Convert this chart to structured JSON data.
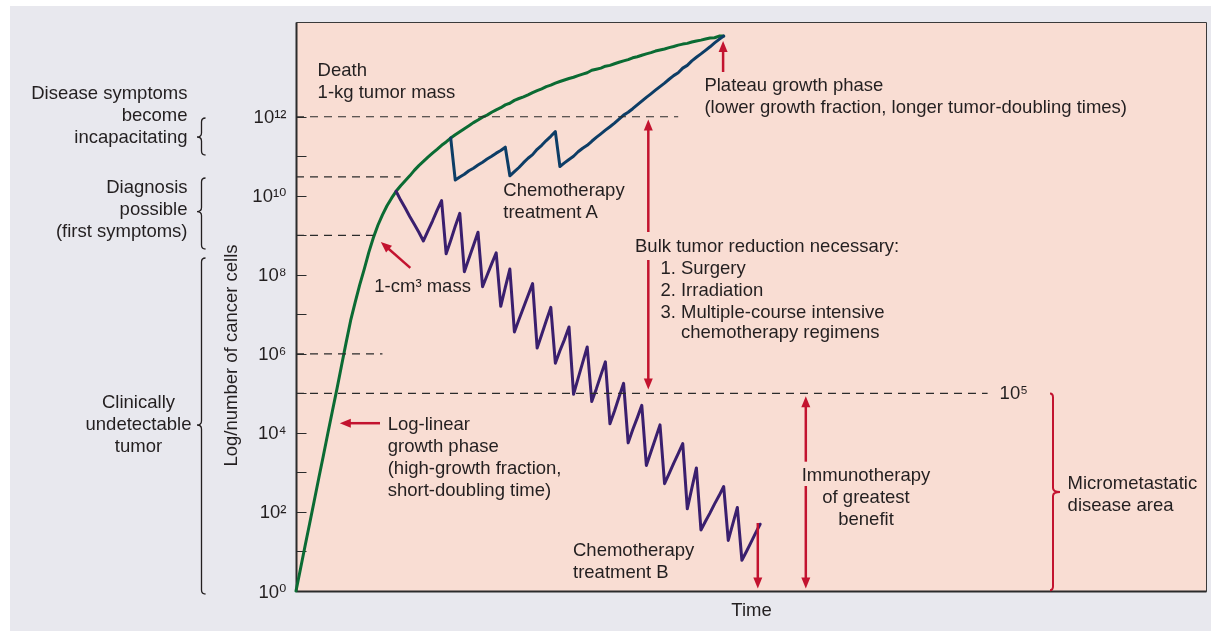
{
  "chart_data": {
    "type": "line",
    "xlabel": "Time",
    "ylabel": "Log/number of cancer cells",
    "categories": [
      null,
      null,
      null,
      null,
      null,
      null,
      null,
      null,
      null,
      null,
      null,
      null,
      null,
      null,
      null,
      null,
      null,
      null,
      null,
      null,
      null,
      null,
      null,
      null,
      null,
      null,
      null,
      null,
      null,
      null,
      null,
      null,
      null,
      null,
      null,
      null,
      null,
      null,
      null,
      null,
      null,
      null,
      null,
      null,
      null,
      null,
      null,
      null,
      null,
      null,
      null,
      null,
      null,
      null,
      null,
      null,
      null,
      null,
      null,
      null,
      null,
      null,
      null,
      null,
      null,
      null,
      null,
      null,
      null,
      null,
      null,
      null,
      null,
      null,
      null,
      null,
      null,
      null,
      null,
      null,
      null,
      null,
      null,
      null,
      null,
      null,
      null,
      null,
      null,
      null,
      null,
      null,
      null,
      null,
      null,
      null,
      null,
      null,
      null,
      null,
      null,
      null,
      null,
      null,
      null,
      null,
      null,
      null,
      null,
      null,
      null,
      null,
      null,
      null,
      null,
      null,
      null,
      null,
      null,
      null,
      null,
      null,
      null,
      null,
      null,
      null,
      null,
      null,
      null,
      null,
      null,
      null,
      null,
      null,
      null,
      null,
      null,
      null,
      null,
      null,
      null,
      null,
      null,
      null,
      null,
      null,
      null,
      null,
      null,
      null,
      null,
      null,
      null,
      null,
      null,
      null,
      null,
      null,
      null,
      null,
      null,
      null,
      null,
      null,
      null,
      null,
      null,
      null,
      null,
      null,
      null,
      null,
      null,
      null,
      null,
      null,
      null,
      null,
      null,
      null,
      null,
      null,
      null,
      null,
      null,
      null,
      null,
      null,
      null,
      null,
      null,
      null,
      null,
      null,
      null,
      null,
      null,
      null,
      null,
      null,
      null
    ],
    "ylim": [
      1,
      250000000000000.0
    ],
    "log": true,
    "grid": false,
    "legend": false,
    "tick_labels": "y",
    "yticks": [
      {
        "value": 1,
        "label": "10⁰"
      },
      {
        "value": 10,
        "label": null
      },
      {
        "value": 100,
        "label": "10²"
      },
      {
        "value": 1000,
        "label": null
      },
      {
        "value": 10000,
        "label": "10⁴"
      },
      {
        "value": 100000,
        "label": null
      },
      {
        "value": 1000000,
        "label": "10⁶"
      },
      {
        "value": 10000000,
        "label": null
      },
      {
        "value": 100000000,
        "label": "10⁸"
      },
      {
        "value": 1000000000,
        "label": null
      },
      {
        "value": 10000000000,
        "label": "10¹⁰"
      },
      {
        "value": 100000000000,
        "label": null
      },
      {
        "value": 1000000000000,
        "label": "10¹²"
      }
    ],
    "series": [
      {
        "color": "#0b6b33",
        "values": [
          1,
          3.7,
          14,
          51,
          190,
          710,
          2600,
          9800,
          36000.0,
          130000.0,
          500000.0,
          1900000.0,
          6900000.0,
          20000000.0,
          56000000.0,
          140000000.0,
          370000000.0,
          870000000.0,
          1800000000.0,
          3300000000.0,
          5600000000.0,
          8700000000.0,
          13000000000.0,
          18000000000.0,
          24000000000.0,
          32000000000.0,
          44000000000.0,
          58000000000.0,
          74000000000.0,
          95000000000.0,
          120000000000.0,
          150000000000.0,
          190000000000.0,
          230000000000.0,
          290000000000.0,
          350000000000.0,
          420000000000.0,
          500000000000.0,
          590000000000.0,
          710000000000.0,
          830000000000.0,
          980000000000.0,
          1100000000000.0,
          1300000000000.0,
          1500000000000.0,
          1700000000000.0,
          2000000000000.0,
          2200000000000.0,
          2600000000000.0,
          2900000000000.0,
          3200000000000.0,
          3600000000000.0,
          4100000000000.0,
          4600000000000.0,
          5100000000000.0,
          5800000000000.0,
          6300000000000.0,
          7100000000000.0,
          7800000000000.0,
          8500000000000.0,
          9300000000000.0,
          10000000000000.0,
          11000000000000.0,
          12000000000000.0,
          13000000000000.0,
          15000000000000.0,
          16000000000000.0,
          17000000000000.0,
          19000000000000.0,
          20000000000000.0,
          22000000000000.0,
          24000000000000.0,
          26000000000000.0,
          28000000000000.0,
          31000000000000.0,
          33000000000000.0,
          36000000000000.0,
          39000000000000.0,
          42000000000000.0,
          46000000000000.0,
          49000000000000.0,
          52000000000000.0,
          56000000000000.0,
          60000000000000.0,
          65000000000000.0,
          69000000000000.0,
          72000000000000.0,
          78000000000000.0,
          83000000000000.0,
          87000000000000.0,
          93000000000000.0,
          98000000000000.0,
          100000000000000.0,
          110000000000000.0,
          110000000000000.0,
          null,
          null,
          null,
          null,
          null,
          null,
          null,
          null,
          null,
          null,
          null,
          null,
          null,
          null,
          null,
          null,
          null,
          null,
          null,
          null,
          null,
          null,
          null,
          null,
          null,
          null,
          null,
          null,
          null,
          null,
          null,
          null,
          null,
          null,
          null,
          null,
          null,
          null,
          null,
          null,
          null,
          null,
          null,
          null,
          null,
          null,
          null,
          null,
          null,
          null,
          null,
          null,
          null,
          null,
          null,
          null,
          null,
          null,
          null,
          null,
          null,
          null,
          null,
          null,
          null,
          null,
          null,
          null,
          null,
          null,
          null,
          null,
          null,
          null,
          null,
          null,
          null,
          null,
          null,
          null,
          null,
          null,
          null,
          null,
          null,
          null,
          null,
          null,
          null,
          null,
          null,
          null,
          null,
          null,
          null,
          null,
          null,
          null,
          null,
          null,
          null,
          null,
          null,
          null,
          null,
          null
        ]
      },
      {
        "name": "Chemotherapy\ntreatment A",
        "color": "#0d3d66",
        "values": [
          null,
          null,
          null,
          null,
          null,
          null,
          null,
          null,
          null,
          null,
          null,
          null,
          null,
          null,
          null,
          null,
          null,
          null,
          null,
          null,
          null,
          null,
          null,
          null,
          null,
          null,
          null,
          null,
          null,
          null,
          null,
          null,
          null,
          null,
          290000000000.0,
          25000000000.0,
          30000000000.0,
          35000000000.0,
          43000000000.0,
          50000000000.0,
          60000000000.0,
          71000000000.0,
          85000000000.0,
          100000000000.0,
          120000000000.0,
          140000000000.0,
          170000000000.0,
          32000000000.0,
          41000000000.0,
          52000000000.0,
          69000000000.0,
          89000000000.0,
          110000000000.0,
          150000000000.0,
          190000000000.0,
          250000000000.0,
          320000000000.0,
          420000000000.0,
          55000000000.0,
          68000000000.0,
          83000000000.0,
          100000000000.0,
          130000000000.0,
          160000000000.0,
          190000000000.0,
          240000000000.0,
          300000000000.0,
          370000000000.0,
          460000000000.0,
          560000000000.0,
          690000000000.0,
          870000000000.0,
          1100000000000.0,
          1300000000000.0,
          1600000000000.0,
          2000000000000.0,
          2500000000000.0,
          3100000000000.0,
          3800000000000.0,
          4700000000000.0,
          5800000000000.0,
          7100000000000.0,
          8900000000000.0,
          11000000000000.0,
          13000000000000.0,
          17000000000000.0,
          20000000000000.0,
          26000000000000.0,
          32000000000000.0,
          39000000000000.0,
          48000000000000.0,
          59000000000000.0,
          74000000000000.0,
          91000000000000.0,
          110000000000000.0,
          null,
          null,
          null,
          null,
          null,
          null,
          null,
          null,
          null,
          null,
          null,
          null,
          null,
          null,
          null,
          null,
          null,
          null,
          null,
          null,
          null,
          null,
          null,
          null,
          null,
          null,
          null,
          null,
          null,
          null,
          null,
          null,
          null,
          null,
          null,
          null,
          null,
          null,
          null,
          null,
          null,
          null,
          null,
          null,
          null,
          null,
          null,
          null,
          null,
          null,
          null,
          null,
          null,
          null,
          null,
          null,
          null,
          null,
          null,
          null,
          null,
          null,
          null,
          null,
          null,
          null,
          null,
          null,
          null,
          null,
          null,
          null,
          null,
          null,
          null,
          null,
          null,
          null,
          null,
          null,
          null,
          null,
          null,
          null,
          null,
          null,
          null,
          null,
          null,
          null,
          null,
          null,
          null,
          null,
          null,
          null,
          null,
          null,
          null,
          null,
          null,
          null,
          null,
          null,
          null,
          null
        ]
      },
      {
        "name": "Chemotherapy\ntreatment B",
        "color": "#3a1f6e",
        "values": [
          null,
          null,
          null,
          null,
          null,
          null,
          null,
          null,
          null,
          null,
          null,
          null,
          null,
          null,
          null,
          null,
          null,
          null,
          null,
          null,
          null,
          null,
          13000000000.0,
          7800000000.0,
          4900000000.0,
          3000000000.0,
          1900000000.0,
          1200000000.0,
          720000000.0,
          1300000000.0,
          2300000000.0,
          4300000000.0,
          7600000000.0,
          340000000.0,
          740000000.0,
          1700000000.0,
          3600000000.0,
          120000000.0,
          260000000.0,
          550000000.0,
          1200000000.0,
          50000000.0,
          98000000.0,
          190000000.0,
          360000000.0,
          16000000.0,
          48000000.0,
          140000000.0,
          3600000.0,
          7400000.0,
          15000000.0,
          30000000.0,
          60000000.0,
          1400000.0,
          3100000.0,
          6900000.0,
          15000000.0,
          580000.0,
          1200000.0,
          2300000.0,
          4800000.0,
          95000.0,
          240000.0,
          600000.0,
          1500000.0,
          62000.0,
          130000.0,
          290000.0,
          630000.0,
          17000.0,
          36000.0,
          81000.0,
          180000.0,
          5600.0,
          12000.0,
          24000.0,
          50000.0,
          1500.0,
          3300.0,
          7200.0,
          16000.0,
          520,
          930,
          1700.0,
          3000.0,
          5400.0,
          120,
          400,
          1300.0,
          35,
          58,
          95,
          160,
          260,
          440,
          19,
          50,
          130,
          6,
          10,
          17,
          29,
          49,
          null,
          null,
          null,
          null,
          null,
          null,
          null,
          null,
          null,
          null,
          null,
          null,
          null,
          null,
          null,
          null,
          null,
          null,
          null,
          null,
          null,
          null,
          null,
          null,
          null,
          null,
          null,
          null,
          null,
          null,
          null,
          null,
          null,
          null,
          null,
          null,
          null,
          null,
          null,
          null,
          null,
          null,
          null,
          null,
          null,
          null,
          null,
          null,
          null,
          null,
          null,
          null,
          null,
          null,
          null,
          null,
          null,
          null,
          null,
          null,
          null,
          null,
          null,
          null,
          null,
          null,
          null,
          null,
          null,
          null,
          null,
          null,
          null,
          null,
          null,
          null,
          null,
          null,
          null,
          null,
          null,
          null,
          null,
          null,
          null,
          null,
          null,
          null,
          null,
          null,
          null,
          null,
          null,
          null,
          null,
          null,
          null,
          null
        ]
      },
      {
        "color": "#2b2b2b",
        "line_style": "dashed",
        "values": [
          1000000000000.0,
          1000000000000.0,
          1000000000000.0,
          1000000000000.0,
          1000000000000.0,
          1000000000000.0,
          1000000000000.0,
          1000000000000.0,
          1000000000000.0,
          1000000000000.0,
          1000000000000.0,
          1000000000000.0,
          1000000000000.0,
          1000000000000.0,
          1000000000000.0,
          1000000000000.0,
          1000000000000.0,
          1000000000000.0,
          1000000000000.0,
          1000000000000.0,
          1000000000000.0,
          1000000000000.0,
          1000000000000.0,
          1000000000000.0,
          1000000000000.0,
          1000000000000.0,
          1000000000000.0,
          1000000000000.0,
          1000000000000.0,
          1000000000000.0,
          1000000000000.0,
          1000000000000.0,
          1000000000000.0,
          1000000000000.0,
          1000000000000.0,
          1000000000000.0,
          1000000000000.0,
          1000000000000.0,
          1000000000000.0,
          1000000000000.0,
          1000000000000.0,
          1000000000000.0,
          1000000000000.0,
          1000000000000.0,
          1000000000000.0,
          1000000000000.0,
          1000000000000.0,
          1000000000000.0,
          1000000000000.0,
          1000000000000.0,
          1000000000000.0,
          1000000000000.0,
          1000000000000.0,
          1000000000000.0,
          1000000000000.0,
          1000000000000.0,
          1000000000000.0,
          1000000000000.0,
          1000000000000.0,
          1000000000000.0,
          1000000000000.0,
          1000000000000.0,
          1000000000000.0,
          1000000000000.0,
          1000000000000.0,
          1000000000000.0,
          1000000000000.0,
          1000000000000.0,
          1000000000000.0,
          1000000000000.0,
          1000000000000.0,
          1000000000000.0,
          1000000000000.0,
          1000000000000.0,
          1000000000000.0,
          1000000000000.0,
          1000000000000.0,
          1000000000000.0,
          1000000000000.0,
          1000000000000.0,
          1000000000000.0,
          1000000000000.0,
          1000000000000.0,
          1000000000000.0,
          1000000000000.0,
          null,
          null,
          null,
          null,
          null,
          null,
          null,
          null,
          null,
          null,
          null,
          null,
          null,
          null,
          null,
          null,
          null,
          null,
          null,
          null,
          null,
          null,
          null,
          null,
          null,
          null,
          null,
          null,
          null,
          null,
          null,
          null,
          null,
          null,
          null,
          null,
          null,
          null,
          null,
          null,
          null,
          null,
          null,
          null,
          null,
          null,
          null,
          null,
          null,
          null,
          null,
          null,
          null,
          null,
          null,
          null,
          null,
          null,
          null,
          null,
          null,
          null,
          null,
          null,
          null,
          null,
          null,
          null,
          null,
          null,
          null,
          null,
          null,
          null,
          null,
          null,
          null,
          null,
          null,
          null,
          null,
          null,
          null,
          null,
          null,
          null,
          null,
          null,
          null,
          null,
          null,
          null,
          null,
          null,
          null,
          null,
          null,
          null,
          null,
          null,
          null,
          null,
          null,
          null,
          null,
          null,
          null,
          null,
          null,
          null,
          null,
          null,
          null,
          null,
          null,
          null
        ]
      },
      {
        "color": "#2b2b2b",
        "line_style": "dashed",
        "values": [
          30000000000.0,
          30000000000.0,
          30000000000.0,
          30000000000.0,
          30000000000.0,
          30000000000.0,
          30000000000.0,
          30000000000.0,
          30000000000.0,
          30000000000.0,
          30000000000.0,
          30000000000.0,
          30000000000.0,
          30000000000.0,
          30000000000.0,
          30000000000.0,
          30000000000.0,
          30000000000.0,
          30000000000.0,
          30000000000.0,
          30000000000.0,
          30000000000.0,
          30000000000.0,
          30000000000.0,
          null,
          null,
          null,
          null,
          null,
          null,
          null,
          null,
          null,
          null,
          null,
          null,
          null,
          null,
          null,
          null,
          null,
          null,
          null,
          null,
          null,
          null,
          null,
          null,
          null,
          null,
          null,
          null,
          null,
          null,
          null,
          null,
          null,
          null,
          null,
          null,
          null,
          null,
          null,
          null,
          null,
          null,
          null,
          null,
          null,
          null,
          null,
          null,
          null,
          null,
          null,
          null,
          null,
          null,
          null,
          null,
          null,
          null,
          null,
          null,
          null,
          null,
          null,
          null,
          null,
          null,
          null,
          null,
          null,
          null,
          null,
          null,
          null,
          null,
          null,
          null,
          null,
          null,
          null,
          null,
          null,
          null,
          null,
          null,
          null,
          null,
          null,
          null,
          null,
          null,
          null,
          null,
          null,
          null,
          null,
          null,
          null,
          null,
          null,
          null,
          null,
          null,
          null,
          null,
          null,
          null,
          null,
          null,
          null,
          null,
          null,
          null,
          null,
          null,
          null,
          null,
          null,
          null,
          null,
          null,
          null,
          null,
          null,
          null,
          null,
          null,
          null,
          null,
          null,
          null,
          null,
          null,
          null,
          null,
          null,
          null,
          null,
          null,
          null,
          null,
          null,
          null,
          null,
          null,
          null,
          null,
          null,
          null,
          null,
          null,
          null,
          null,
          null,
          null,
          null,
          null,
          null,
          null,
          null,
          null,
          null,
          null,
          null,
          null,
          null,
          null,
          null,
          null,
          null,
          null,
          null,
          null,
          null,
          null,
          null,
          null,
          null
        ]
      },
      {
        "color": "#2b2b2b",
        "line_style": "dashed",
        "values": [
          1000000000.0,
          1000000000.0,
          1000000000.0,
          1000000000.0,
          1000000000.0,
          1000000000.0,
          1000000000.0,
          1000000000.0,
          1000000000.0,
          1000000000.0,
          1000000000.0,
          1000000000.0,
          1000000000.0,
          1000000000.0,
          1000000000.0,
          1000000000.0,
          1000000000.0,
          1000000000.0,
          null,
          null,
          null,
          null,
          null,
          null,
          null,
          null,
          null,
          null,
          null,
          null,
          null,
          null,
          null,
          null,
          null,
          null,
          null,
          null,
          null,
          null,
          null,
          null,
          null,
          null,
          null,
          null,
          null,
          null,
          null,
          null,
          null,
          null,
          null,
          null,
          null,
          null,
          null,
          null,
          null,
          null,
          null,
          null,
          null,
          null,
          null,
          null,
          null,
          null,
          null,
          null,
          null,
          null,
          null,
          null,
          null,
          null,
          null,
          null,
          null,
          null,
          null,
          null,
          null,
          null,
          null,
          null,
          null,
          null,
          null,
          null,
          null,
          null,
          null,
          null,
          null,
          null,
          null,
          null,
          null,
          null,
          null,
          null,
          null,
          null,
          null,
          null,
          null,
          null,
          null,
          null,
          null,
          null,
          null,
          null,
          null,
          null,
          null,
          null,
          null,
          null,
          null,
          null,
          null,
          null,
          null,
          null,
          null,
          null,
          null,
          null,
          null,
          null,
          null,
          null,
          null,
          null,
          null,
          null,
          null,
          null,
          null,
          null,
          null,
          null,
          null,
          null,
          null,
          null,
          null,
          null,
          null,
          null,
          null,
          null,
          null,
          null,
          null,
          null,
          null,
          null,
          null,
          null,
          null,
          null,
          null,
          null,
          null,
          null,
          null,
          null,
          null,
          null,
          null,
          null,
          null,
          null,
          null,
          null,
          null,
          null,
          null,
          null,
          null,
          null,
          null,
          null,
          null,
          null,
          null,
          null,
          null,
          null,
          null,
          null,
          null,
          null,
          null,
          null,
          null,
          null,
          null
        ]
      },
      {
        "color": "#2b2b2b",
        "line_style": "dashed",
        "values": [
          1000000.0,
          1000000.0,
          1000000.0,
          1000000.0,
          1000000.0,
          1000000.0,
          1000000.0,
          1000000.0,
          1000000.0,
          1000000.0,
          1000000.0,
          1000000.0,
          1000000.0,
          1000000.0,
          1000000.0,
          1000000.0,
          1000000.0,
          1000000.0,
          1000000.0,
          1000000.0,
          null,
          null,
          null,
          null,
          null,
          null,
          null,
          null,
          null,
          null,
          null,
          null,
          null,
          null,
          null,
          null,
          null,
          null,
          null,
          null,
          null,
          null,
          null,
          null,
          null,
          null,
          null,
          null,
          null,
          null,
          null,
          null,
          null,
          null,
          null,
          null,
          null,
          null,
          null,
          null,
          null,
          null,
          null,
          null,
          null,
          null,
          null,
          null,
          null,
          null,
          null,
          null,
          null,
          null,
          null,
          null,
          null,
          null,
          null,
          null,
          null,
          null,
          null,
          null,
          null,
          null,
          null,
          null,
          null,
          null,
          null,
          null,
          null,
          null,
          null,
          null,
          null,
          null,
          null,
          null,
          null,
          null,
          null,
          null,
          null,
          null,
          null,
          null,
          null,
          null,
          null,
          null,
          null,
          null,
          null,
          null,
          null,
          null,
          null,
          null,
          null,
          null,
          null,
          null,
          null,
          null,
          null,
          null,
          null,
          null,
          null,
          null,
          null,
          null,
          null,
          null,
          null,
          null,
          null,
          null,
          null,
          null,
          null,
          null,
          null,
          null,
          null,
          null,
          null,
          null,
          null,
          null,
          null,
          null,
          null,
          null,
          null,
          null,
          null,
          null,
          null,
          null,
          null,
          null,
          null,
          null,
          null,
          null,
          null,
          null,
          null,
          null,
          null,
          null,
          null,
          null,
          null,
          null,
          null,
          null,
          null,
          null,
          null,
          null,
          null,
          null,
          null,
          null,
          null,
          null,
          null,
          null,
          null,
          null,
          null,
          null,
          null,
          null,
          null,
          null,
          null
        ]
      },
      {
        "name": "10⁵",
        "color": "#2b2b2b",
        "line_style": "dashed",
        "values": [
          100000.0,
          100000.0,
          100000.0,
          100000.0,
          100000.0,
          100000.0,
          100000.0,
          100000.0,
          100000.0,
          100000.0,
          100000.0,
          100000.0,
          100000.0,
          100000.0,
          100000.0,
          100000.0,
          100000.0,
          100000.0,
          100000.0,
          100000.0,
          100000.0,
          100000.0,
          100000.0,
          100000.0,
          100000.0,
          100000.0,
          100000.0,
          100000.0,
          100000.0,
          100000.0,
          100000.0,
          100000.0,
          100000.0,
          100000.0,
          100000.0,
          100000.0,
          100000.0,
          100000.0,
          100000.0,
          100000.0,
          100000.0,
          100000.0,
          100000.0,
          100000.0,
          100000.0,
          100000.0,
          100000.0,
          100000.0,
          100000.0,
          100000.0,
          100000.0,
          100000.0,
          100000.0,
          100000.0,
          100000.0,
          100000.0,
          100000.0,
          100000.0,
          100000.0,
          100000.0,
          100000.0,
          100000.0,
          100000.0,
          100000.0,
          100000.0,
          100000.0,
          100000.0,
          100000.0,
          100000.0,
          100000.0,
          100000.0,
          100000.0,
          100000.0,
          100000.0,
          100000.0,
          100000.0,
          100000.0,
          100000.0,
          100000.0,
          100000.0,
          100000.0,
          100000.0,
          100000.0,
          100000.0,
          100000.0,
          100000.0,
          100000.0,
          100000.0,
          100000.0,
          100000.0,
          100000.0,
          100000.0,
          100000.0,
          100000.0,
          100000.0,
          100000.0,
          100000.0,
          100000.0,
          100000.0,
          100000.0,
          100000.0,
          100000.0,
          100000.0,
          100000.0,
          100000.0,
          100000.0,
          100000.0,
          100000.0,
          100000.0,
          100000.0,
          100000.0,
          100000.0,
          100000.0,
          100000.0,
          100000.0,
          100000.0,
          100000.0,
          100000.0,
          100000.0,
          100000.0,
          100000.0,
          100000.0,
          100000.0,
          100000.0,
          100000.0,
          100000.0,
          100000.0,
          100000.0,
          100000.0,
          100000.0,
          100000.0,
          100000.0,
          100000.0,
          100000.0,
          100000.0,
          100000.0,
          100000.0,
          100000.0,
          100000.0,
          100000.0,
          100000.0,
          100000.0,
          100000.0,
          100000.0,
          100000.0,
          100000.0,
          100000.0,
          100000.0,
          100000.0,
          100000.0,
          100000.0,
          100000.0,
          100000.0,
          null,
          null,
          null,
          null,
          null,
          null,
          null,
          null,
          null,
          null,
          null,
          null,
          null,
          null,
          null,
          null,
          null,
          null,
          null,
          null,
          null,
          null,
          null,
          null,
          null,
          null,
          null,
          null,
          null,
          null,
          null,
          null,
          null,
          null,
          null,
          null,
          null,
          null,
          null,
          null,
          null,
          null,
          null,
          null,
          null,
          null,
          null,
          null
        ]
      }
    ],
    "annotations": [
      "Disease symptoms\nbecome\nincapacitating",
      "Diagnosis\npossible\n(first symptoms)",
      "Clinically\nundetectable\ntumor",
      "Death\n1-kg tumor mass",
      "Plateau growth phase\n(lower growth fraction, longer tumor-doubling times)",
      "Bulk tumor reduction necessary:",
      "1. Surgery\n2. Irradiation\n3. Multiple-course intensive",
      "chemotherapy regimens",
      "1-cm³ mass",
      "Log-linear\ngrowth phase\n(high-growth fraction,\nshort-doubling time)",
      "Immunotherapy\nof greatest\nbenefit",
      "Micrometastatic\ndisease area"
    ]
  }
}
